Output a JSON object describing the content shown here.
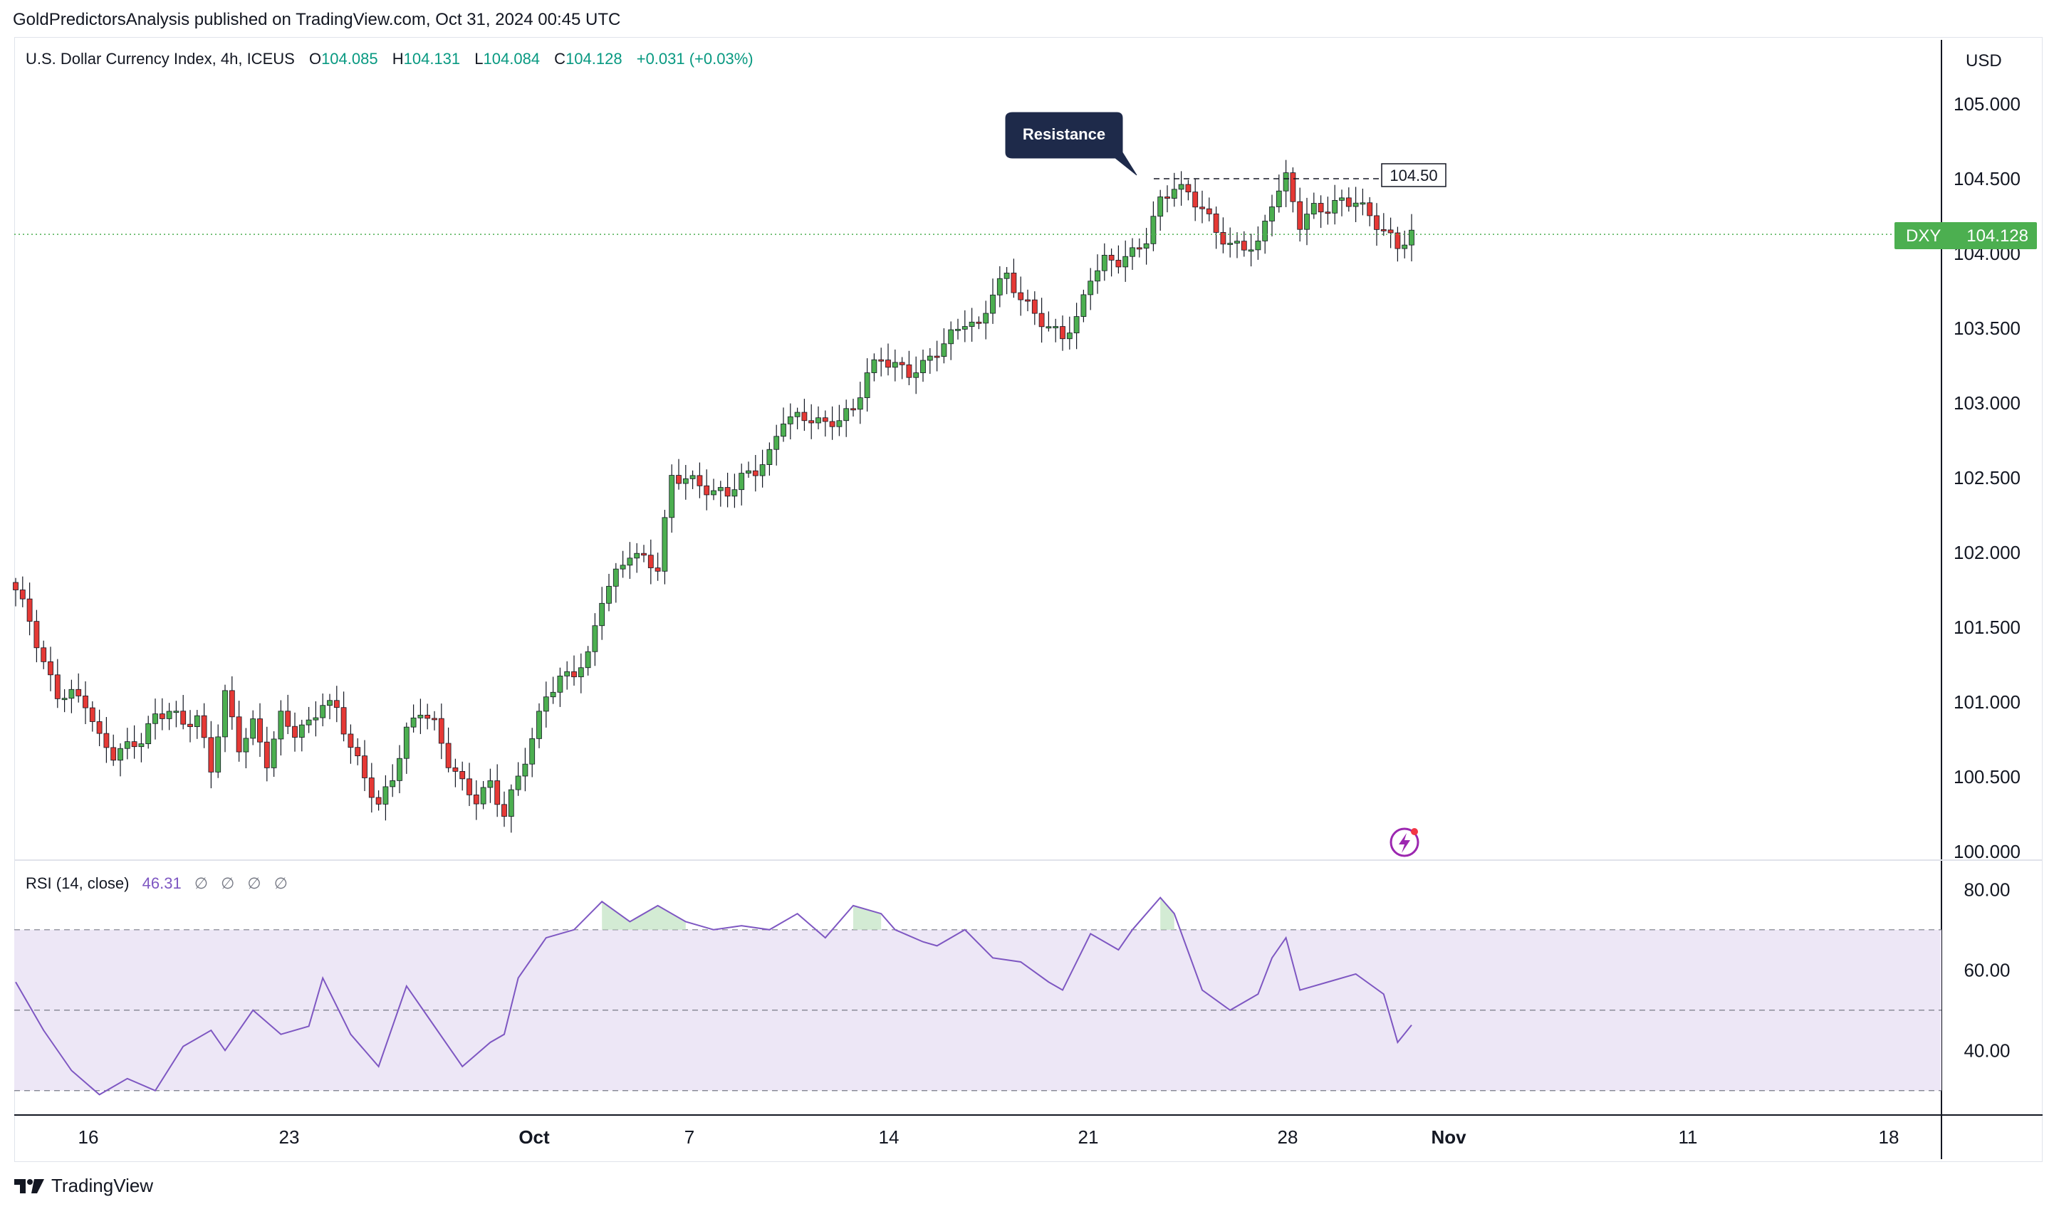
{
  "publisher_line": "GoldPredictorsAnalysis published on TradingView.com, Oct 31, 2024 00:45 UTC",
  "legend": {
    "name": "U.S. Dollar Currency Index, 4h, ICEUS",
    "o_label": "O",
    "o_value": "104.085",
    "h_label": "H",
    "h_value": "104.131",
    "l_label": "L",
    "l_value": "104.084",
    "c_label": "C",
    "c_value": "104.128",
    "change": "+0.031 (+0.03%)"
  },
  "currency": "USD",
  "last_price_tag": {
    "symbol": "DXY",
    "price": "104.128",
    "color": "#4caf50"
  },
  "annotation": {
    "callout": "Resistance",
    "level_label": "104.50",
    "level": 104.5
  },
  "rsi_legend": {
    "label": "RSI (14, close)",
    "value": "46.31",
    "placeholders": [
      "∅",
      "∅",
      "∅",
      "∅"
    ]
  },
  "footer": {
    "brand": "TradingView"
  },
  "colors": {
    "up": "#089981",
    "down": "#f23645",
    "up_body": "#4caf50",
    "down_body": "#e53935",
    "rsi_line": "#7e57c2",
    "rsi_band": "#ede7f6"
  },
  "chart_data": [
    {
      "type": "candlestick",
      "title": "U.S. Dollar Currency Index, 4h, ICEUS",
      "ylim": [
        100.0,
        105.2
      ],
      "yticks": [
        "105.000",
        "104.500",
        "104.000",
        "103.500",
        "103.000",
        "102.500",
        "102.000",
        "101.500",
        "101.000",
        "100.500",
        "100.000"
      ],
      "xticks": [
        "16",
        "23",
        "Oct",
        "7",
        "14",
        "21",
        "28",
        "Nov",
        "11",
        "18"
      ],
      "close_path": [
        [
          0,
          101.75
        ],
        [
          2,
          101.55
        ],
        [
          4,
          101.25
        ],
        [
          6,
          101.05
        ],
        [
          8,
          101.05
        ],
        [
          10,
          101.0
        ],
        [
          12,
          100.75
        ],
        [
          14,
          100.65
        ],
        [
          16,
          100.7
        ],
        [
          18,
          100.75
        ],
        [
          20,
          100.9
        ],
        [
          22,
          100.95
        ],
        [
          24,
          100.85
        ],
        [
          26,
          100.9
        ],
        [
          28,
          100.55
        ],
        [
          30,
          101.05
        ],
        [
          32,
          100.7
        ],
        [
          34,
          100.85
        ],
        [
          36,
          100.6
        ],
        [
          38,
          100.9
        ],
        [
          40,
          100.8
        ],
        [
          42,
          100.85
        ],
        [
          44,
          101.0
        ],
        [
          46,
          100.95
        ],
        [
          48,
          100.7
        ],
        [
          50,
          100.5
        ],
        [
          52,
          100.3
        ],
        [
          54,
          100.5
        ],
        [
          56,
          100.8
        ],
        [
          58,
          100.95
        ],
        [
          60,
          100.85
        ],
        [
          62,
          100.6
        ],
        [
          64,
          100.45
        ],
        [
          66,
          100.35
        ],
        [
          68,
          100.45
        ],
        [
          70,
          100.25
        ],
        [
          72,
          100.5
        ],
        [
          74,
          100.75
        ],
        [
          76,
          101.05
        ],
        [
          78,
          101.15
        ],
        [
          80,
          101.2
        ],
        [
          82,
          101.3
        ],
        [
          84,
          101.7
        ],
        [
          86,
          101.85
        ],
        [
          88,
          102.0
        ],
        [
          90,
          101.95
        ],
        [
          92,
          101.9
        ],
        [
          94,
          102.5
        ],
        [
          96,
          102.5
        ],
        [
          98,
          102.45
        ],
        [
          100,
          102.4
        ],
        [
          102,
          102.4
        ],
        [
          104,
          102.5
        ],
        [
          106,
          102.55
        ],
        [
          108,
          102.65
        ],
        [
          110,
          102.9
        ],
        [
          112,
          102.9
        ],
        [
          114,
          102.9
        ],
        [
          116,
          102.85
        ],
        [
          118,
          102.9
        ],
        [
          120,
          102.95
        ],
        [
          122,
          103.2
        ],
        [
          124,
          103.3
        ],
        [
          126,
          103.25
        ],
        [
          128,
          103.2
        ],
        [
          130,
          103.25
        ],
        [
          132,
          103.35
        ],
        [
          134,
          103.45
        ],
        [
          136,
          103.55
        ],
        [
          138,
          103.5
        ],
        [
          140,
          103.75
        ],
        [
          142,
          103.85
        ],
        [
          144,
          103.7
        ],
        [
          146,
          103.6
        ],
        [
          148,
          103.5
        ],
        [
          150,
          103.45
        ],
        [
          152,
          103.55
        ],
        [
          154,
          103.85
        ],
        [
          156,
          103.95
        ],
        [
          158,
          103.95
        ],
        [
          160,
          104.0
        ],
        [
          162,
          104.1
        ],
        [
          164,
          104.35
        ],
        [
          166,
          104.45
        ],
        [
          168,
          104.4
        ],
        [
          170,
          104.3
        ],
        [
          172,
          104.15
        ],
        [
          174,
          104.05
        ],
        [
          176,
          104.05
        ],
        [
          178,
          104.05
        ],
        [
          180,
          104.35
        ],
        [
          182,
          104.5
        ],
        [
          184,
          104.2
        ],
        [
          186,
          104.3
        ],
        [
          188,
          104.3
        ],
        [
          190,
          104.35
        ],
        [
          192,
          104.35
        ],
        [
          194,
          104.25
        ],
        [
          196,
          104.15
        ],
        [
          198,
          104.05
        ],
        [
          200,
          104.13
        ]
      ],
      "resistance": 104.5,
      "last_close": 104.128
    },
    {
      "type": "line",
      "title": "RSI (14, close)",
      "ylim": [
        25,
        82
      ],
      "yticks": [
        "80.00",
        "60.00",
        "40.00"
      ],
      "bands": {
        "upper": 70,
        "middle": 50,
        "lower": 30
      },
      "series": [
        {
          "name": "RSI",
          "values": [
            [
              0,
              57
            ],
            [
              4,
              45
            ],
            [
              8,
              35
            ],
            [
              12,
              29
            ],
            [
              16,
              33
            ],
            [
              20,
              30
            ],
            [
              24,
              41
            ],
            [
              28,
              45
            ],
            [
              30,
              40
            ],
            [
              34,
              50
            ],
            [
              38,
              44
            ],
            [
              42,
              46
            ],
            [
              44,
              58
            ],
            [
              48,
              44
            ],
            [
              52,
              36
            ],
            [
              56,
              56
            ],
            [
              60,
              46
            ],
            [
              64,
              36
            ],
            [
              68,
              42
            ],
            [
              70,
              44
            ],
            [
              72,
              58
            ],
            [
              76,
              68
            ],
            [
              80,
              70
            ],
            [
              84,
              77
            ],
            [
              88,
              72
            ],
            [
              92,
              76
            ],
            [
              96,
              72
            ],
            [
              100,
              70
            ],
            [
              104,
              71
            ],
            [
              108,
              70
            ],
            [
              112,
              74
            ],
            [
              116,
              68
            ],
            [
              120,
              76
            ],
            [
              124,
              74
            ],
            [
              126,
              70
            ],
            [
              130,
              67
            ],
            [
              132,
              66
            ],
            [
              136,
              70
            ],
            [
              140,
              63
            ],
            [
              144,
              62
            ],
            [
              148,
              57
            ],
            [
              150,
              55
            ],
            [
              154,
              69
            ],
            [
              158,
              65
            ],
            [
              160,
              70
            ],
            [
              164,
              78
            ],
            [
              166,
              74
            ],
            [
              170,
              55
            ],
            [
              174,
              50
            ],
            [
              178,
              54
            ],
            [
              180,
              63
            ],
            [
              182,
              68
            ],
            [
              184,
              55
            ],
            [
              188,
              57
            ],
            [
              192,
              59
            ],
            [
              196,
              54
            ],
            [
              198,
              42
            ],
            [
              200,
              46.31
            ]
          ]
        }
      ]
    }
  ]
}
